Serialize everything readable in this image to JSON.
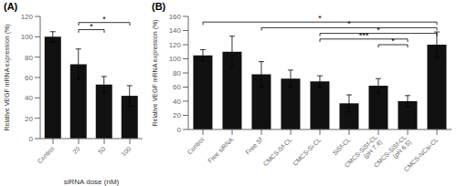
{
  "chart_data": [
    {
      "type": "bar",
      "title": "(A)",
      "categories": [
        "Control",
        "20",
        "50",
        "100"
      ],
      "values": [
        100,
        73,
        53,
        42
      ],
      "errors": [
        5,
        15,
        8,
        10
      ],
      "xlabel": "siRNA dose (nM)",
      "ylabel": "Relative VEGF mRNA expression (%)",
      "ylim": [
        0,
        120
      ],
      "yticks": [
        0,
        20,
        40,
        60,
        80,
        100,
        120
      ],
      "color": "#111111",
      "grid": false,
      "annotations": [
        {
          "from": "20",
          "to": "50",
          "y": 107,
          "label": "*"
        },
        {
          "from": "20",
          "to": "100",
          "y": 114,
          "label": "*"
        }
      ]
    },
    {
      "type": "bar",
      "title": "(B)",
      "categories": [
        "Control",
        "Free siRNA",
        "Free Sf",
        "CMCS-Sf-CL",
        "CMCS-Si-CL",
        "SiSf-CL",
        "CMCS-SiSf-CL\n(pH 7.4)",
        "CMCS-SiSf-CL\n(pH 6.5)",
        "CMCS-NCsi-CL"
      ],
      "values": [
        105,
        110,
        78,
        72,
        68,
        37,
        62,
        40,
        120
      ],
      "errors": [
        8,
        22,
        18,
        12,
        8,
        12,
        10,
        8,
        18
      ],
      "ylabel": "Relative VEGF mRNA expression (%)",
      "ylim": [
        0,
        160
      ],
      "yticks": [
        0,
        20,
        40,
        60,
        80,
        100,
        120,
        140,
        160
      ],
      "color": "#111111",
      "grid": false,
      "annotations": [
        {
          "from": "Control",
          "to": "CMCS-NCsi-CL",
          "y": 152,
          "label": "*"
        },
        {
          "from": "Free Sf",
          "to": "CMCS-NCsi-CL",
          "y": 144,
          "label": "*"
        },
        {
          "from": "CMCS-Si-CL",
          "to": "CMCS-NCsi-CL",
          "y": 136,
          "label": "*"
        },
        {
          "from": "CMCS-Si-CL",
          "to": "CMCS-SiSf-CL\n(pH 6.5)",
          "y": 128,
          "label": "***"
        },
        {
          "from": "CMCS-SiSf-CL\n(pH 7.4)",
          "to": "CMCS-SiSf-CL\n(pH 6.5)",
          "y": 120,
          "label": "*"
        }
      ]
    }
  ]
}
